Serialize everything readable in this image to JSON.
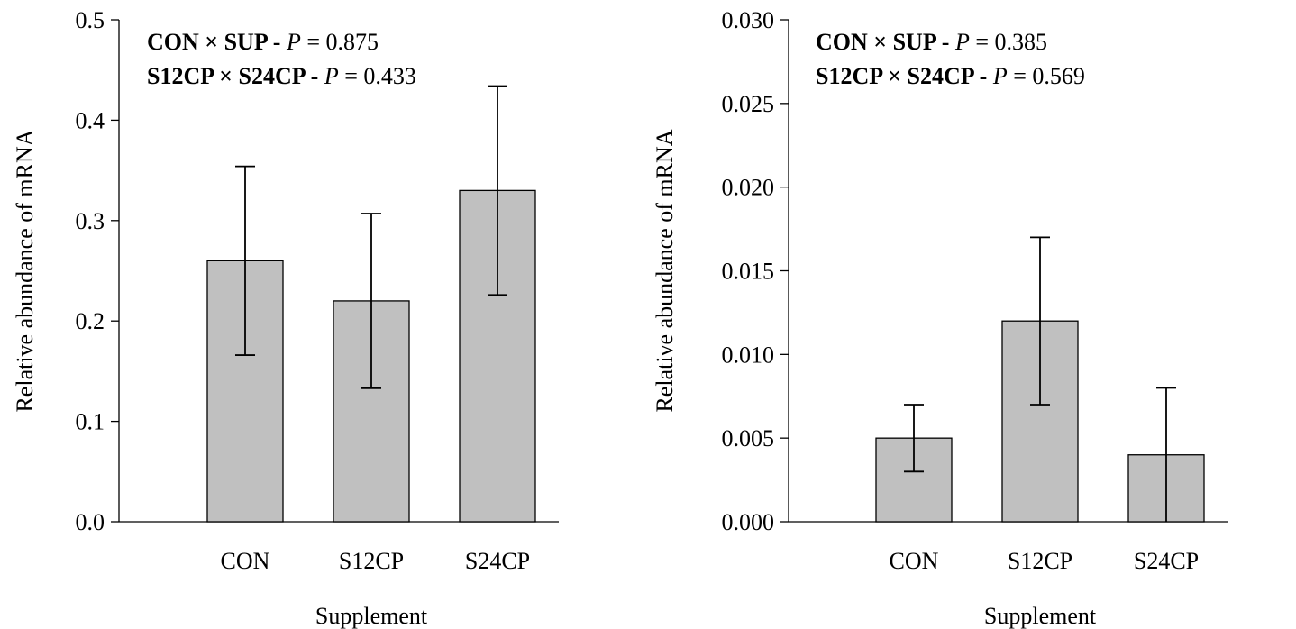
{
  "chart_data": [
    {
      "type": "bar",
      "categories": [
        "CON",
        "S12CP",
        "S24CP"
      ],
      "series": [
        {
          "values": [
            0.26,
            0.22,
            0.33
          ],
          "errors": [
            0.094,
            0.087,
            0.104
          ]
        }
      ],
      "xlabel": "Supplement",
      "ylabel": "Relative abundance of mRNA",
      "ylim": [
        0,
        0.5
      ],
      "yticks": [
        "0.0",
        "0.1",
        "0.2",
        "0.3",
        "0.4",
        "0.5"
      ],
      "ytick_values": [
        0,
        0.1,
        0.2,
        0.3,
        0.4,
        0.5
      ],
      "annotations": [
        {
          "bold": "CON × SUP - ",
          "italic": "P",
          "rest": " = 0.875"
        },
        {
          "bold": "S12CP × S24CP - ",
          "italic": "P",
          "rest": " = 0.433"
        }
      ],
      "bar_color": "#c0c0c0",
      "grid": false
    },
    {
      "type": "bar",
      "categories": [
        "CON",
        "S12CP",
        "S24CP"
      ],
      "series": [
        {
          "values": [
            0.005,
            0.012,
            0.004
          ],
          "errors": [
            0.002,
            0.005,
            0.004
          ]
        }
      ],
      "xlabel": "Supplement",
      "ylabel": "Relative abundance of mRNA",
      "ylim": [
        0,
        0.03
      ],
      "yticks": [
        "0.000",
        "0.005",
        "0.010",
        "0.015",
        "0.020",
        "0.025",
        "0.030"
      ],
      "ytick_values": [
        0,
        0.005,
        0.01,
        0.015,
        0.02,
        0.025,
        0.03
      ],
      "annotations": [
        {
          "bold": "CON × SUP - ",
          "italic": "P",
          "rest": " = 0.385"
        },
        {
          "bold": "S12CP × S24CP - ",
          "italic": "P",
          "rest": " = 0.569"
        }
      ],
      "bar_color": "#c0c0c0",
      "grid": false
    }
  ]
}
